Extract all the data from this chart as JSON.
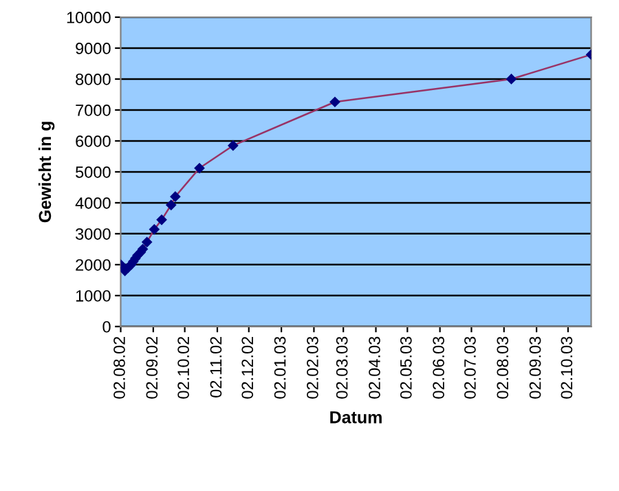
{
  "chart_data": {
    "type": "line",
    "xlabel": "Datum",
    "ylabel": "Gewicht in g",
    "x": [
      "2002-08-02",
      "2002-08-06",
      "2002-08-09",
      "2002-08-12",
      "2002-08-14",
      "2002-08-16",
      "2002-08-18",
      "2002-08-21",
      "2002-08-23",
      "2002-08-27",
      "2002-09-03",
      "2002-09-10",
      "2002-09-19",
      "2002-09-23",
      "2002-10-16",
      "2002-11-17",
      "2003-02-22",
      "2003-08-09",
      "2003-10-24"
    ],
    "series": [
      {
        "color": "#993366",
        "values": [
          2000,
          1800,
          1900,
          2000,
          2100,
          2200,
          2300,
          2400,
          2500,
          2730,
          3140,
          3450,
          3930,
          4200,
          5120,
          5850,
          7260,
          8000,
          8790
        ]
      }
    ],
    "marker": "diamond",
    "grid": "y",
    "legend": false,
    "xlim": [
      "2002-08-02",
      "2003-10-24"
    ],
    "xticks": [
      {
        "value": "2002-08-02",
        "label": "02.08.02"
      },
      {
        "value": "2002-09-02",
        "label": "02.09.02"
      },
      {
        "value": "2002-10-02",
        "label": "02.10.02"
      },
      {
        "value": "2002-11-02",
        "label": "02.11.02"
      },
      {
        "value": "2002-12-02",
        "label": "02.12.02"
      },
      {
        "value": "2003-01-02",
        "label": "02.01.03"
      },
      {
        "value": "2003-02-02",
        "label": "02.02.03"
      },
      {
        "value": "2003-03-02",
        "label": "02.03.03"
      },
      {
        "value": "2003-04-02",
        "label": "02.04.03"
      },
      {
        "value": "2003-05-02",
        "label": "02.05.03"
      },
      {
        "value": "2003-06-02",
        "label": "02.06.03"
      },
      {
        "value": "2003-07-02",
        "label": "02.07.03"
      },
      {
        "value": "2003-08-02",
        "label": "02.08.03"
      },
      {
        "value": "2003-09-02",
        "label": "02.09.03"
      },
      {
        "value": "2003-10-02",
        "label": "02.10.03"
      }
    ],
    "ylim": [
      0,
      10000
    ],
    "yticks": [
      0,
      1000,
      2000,
      3000,
      4000,
      5000,
      6000,
      7000,
      8000,
      9000,
      10000
    ]
  }
}
